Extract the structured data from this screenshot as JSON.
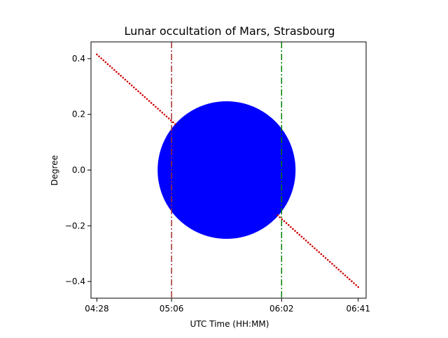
{
  "chart_data": {
    "type": "scatter",
    "title": "Lunar occultation of Mars, Strasbourg",
    "xlabel": "UTC Time (HH:MM)",
    "ylabel": "Degree",
    "x_ticks": [
      "04:28",
      "05:06",
      "06:02",
      "06:41"
    ],
    "x_range": [
      "04:25",
      "06:45"
    ],
    "ylim": [
      -0.46,
      0.46
    ],
    "y_ticks": [
      0.4,
      0.2,
      0.0,
      -0.2,
      -0.4
    ],
    "y_tick_labels": [
      "0.4",
      "0.2",
      "0.0",
      "−0.2",
      "−0.4"
    ],
    "grid": false,
    "moon": {
      "center_time": "05:34",
      "center_y": 0.0,
      "radius_deg": 0.247,
      "color": "#0000ff"
    },
    "track": {
      "start": {
        "time": "04:28",
        "y": 0.415
      },
      "end": {
        "time": "06:41",
        "y": -0.42
      },
      "color": "#cc0000",
      "marker": "dotted"
    },
    "events": [
      {
        "time": "05:06",
        "color": "#a52a2a",
        "style": "dash-dot"
      },
      {
        "time": "06:02",
        "color": "#008000",
        "style": "dash-dot"
      }
    ]
  }
}
